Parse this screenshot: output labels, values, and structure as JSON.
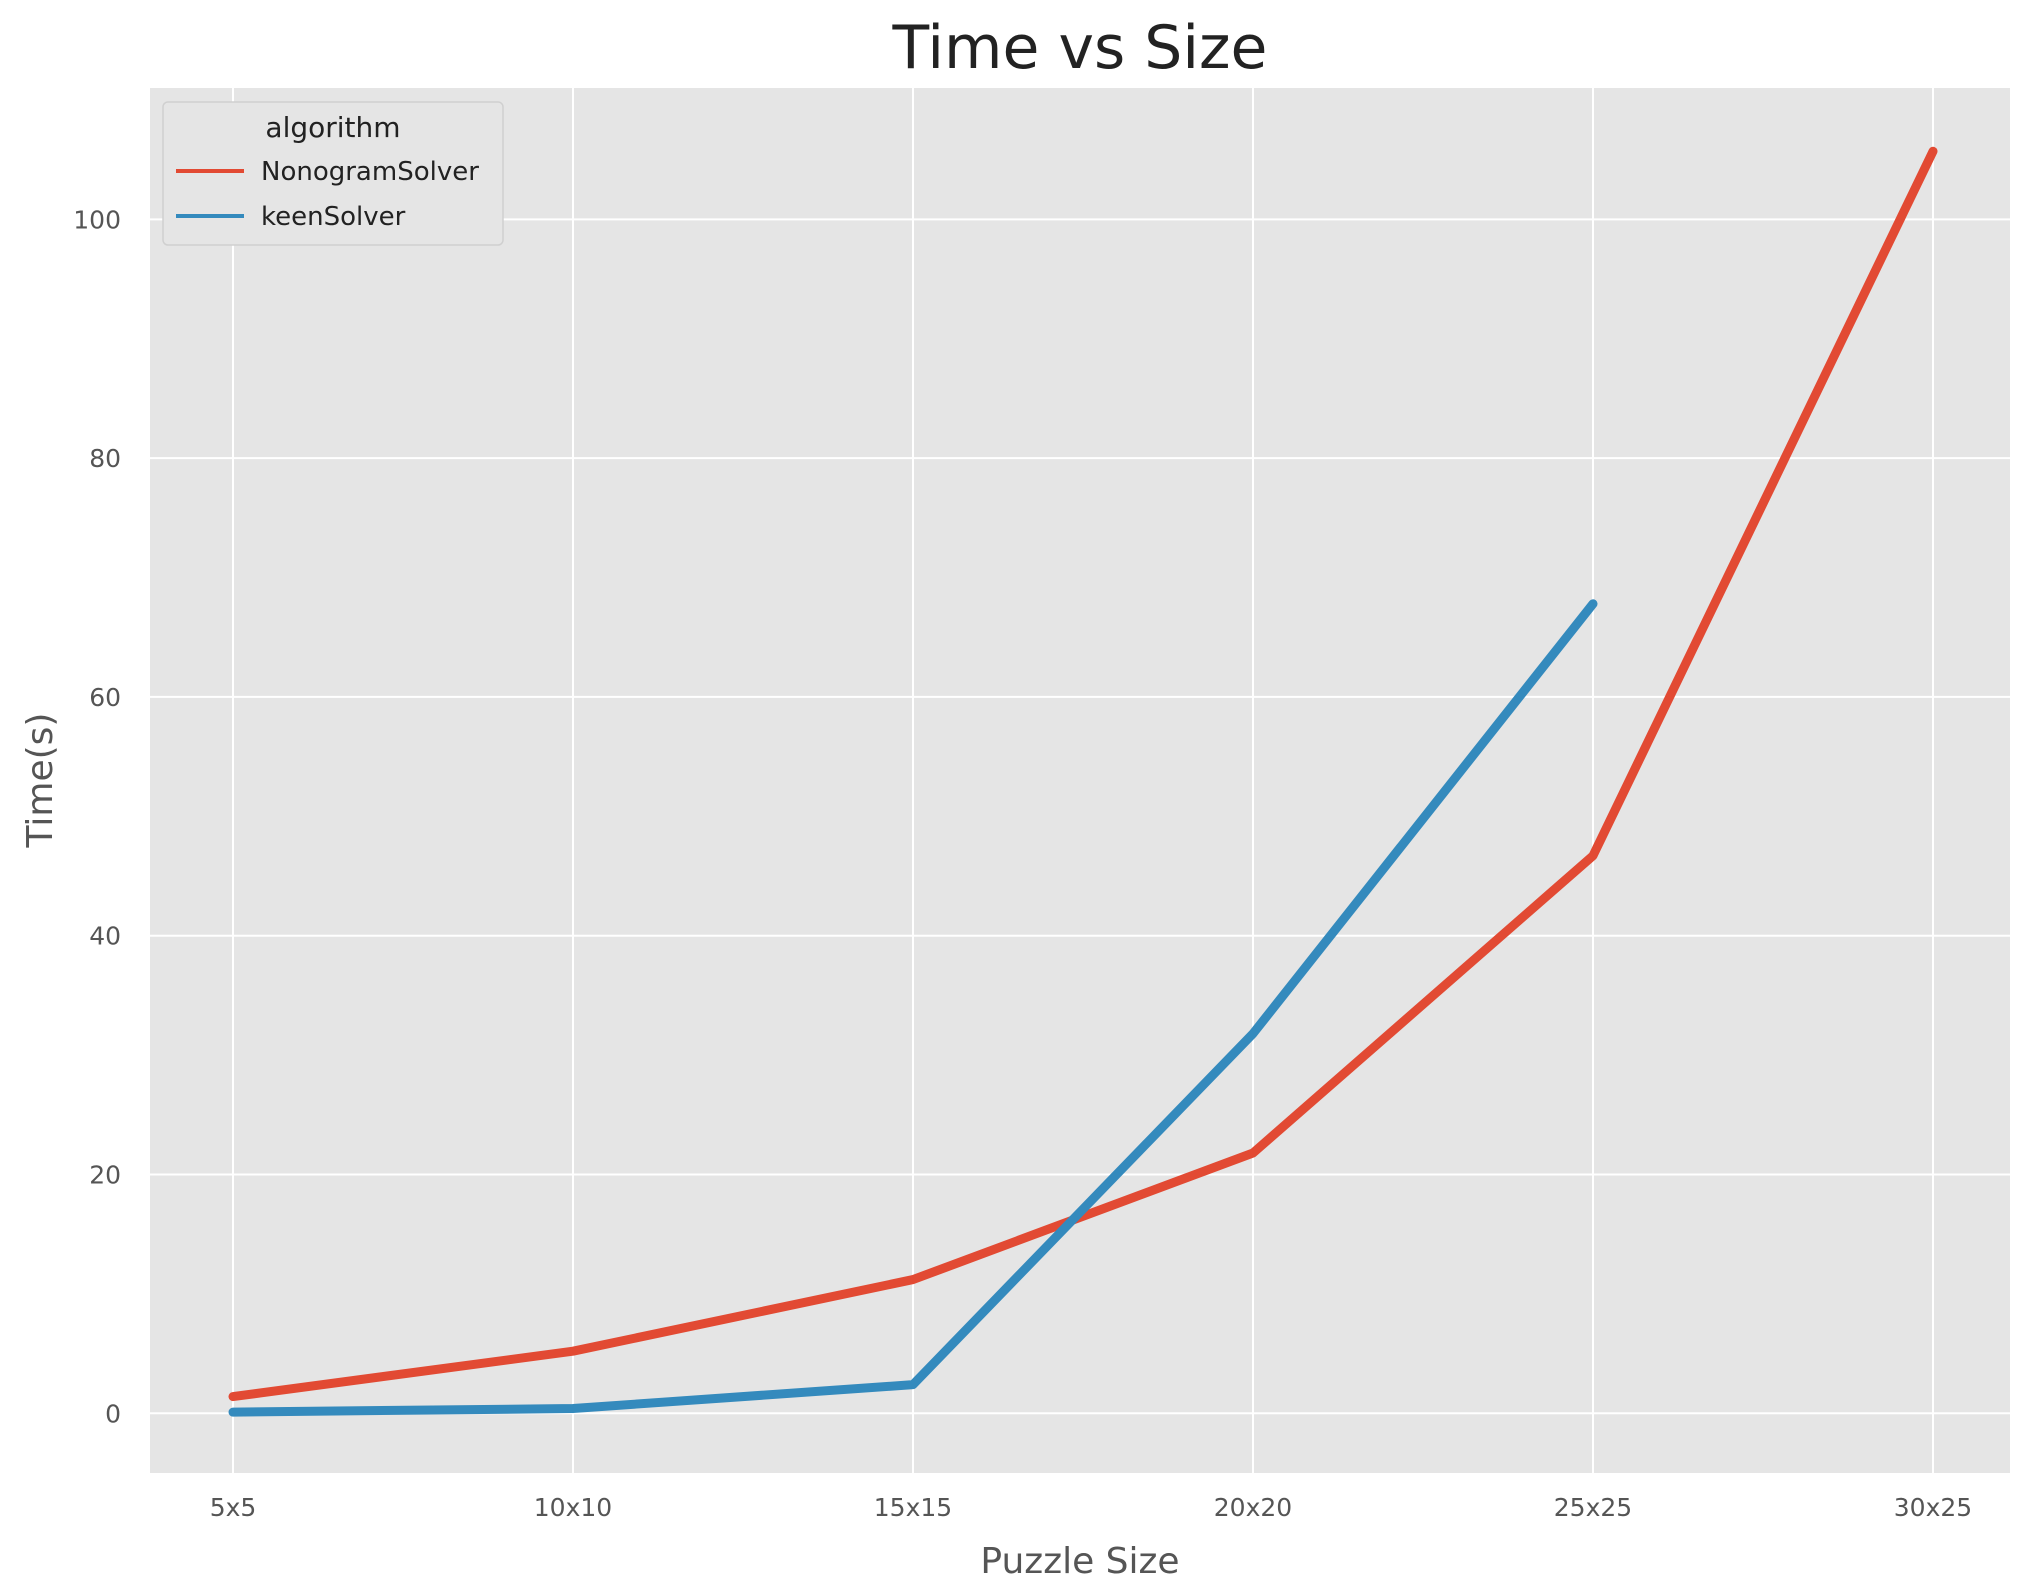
{
  "chart_data": {
    "type": "line",
    "title": "Time vs Size",
    "xlabel": "Puzzle Size",
    "ylabel": "Time(s)",
    "categories": [
      "5x5",
      "10x10",
      "15x15",
      "20x20",
      "25x25",
      "30x25"
    ],
    "yticks": [
      0,
      20,
      40,
      60,
      80,
      100
    ],
    "ylim": [
      -5,
      111
    ],
    "grid": true,
    "legend": {
      "title": "algorithm",
      "position": "top-left"
    },
    "series": [
      {
        "name": "NonogramSolver",
        "color": "#E24A33",
        "values": [
          1.4,
          5.2,
          11.2,
          21.8,
          46.7,
          105.7
        ]
      },
      {
        "name": "keenSolver",
        "color": "#348ABD",
        "values": [
          0.1,
          0.4,
          2.4,
          31.8,
          67.8,
          null
        ]
      }
    ],
    "colors": {
      "plot_background": "#E5E5E5",
      "grid": "#FFFFFF"
    }
  }
}
